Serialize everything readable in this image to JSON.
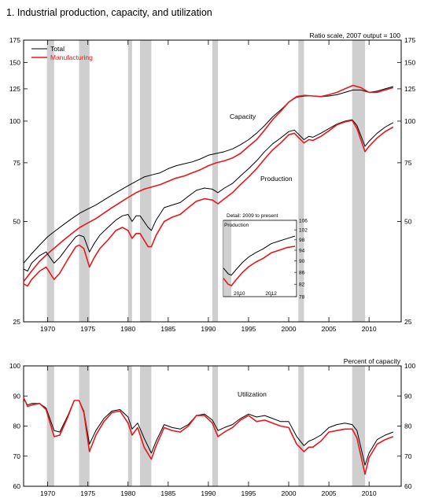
{
  "figure": {
    "title": "1.  Industrial production, capacity, and utilization"
  },
  "chart_data": [
    {
      "type": "line",
      "title": "",
      "scale_note": "Ratio scale, 2007 output = 100",
      "y_scale": "log",
      "ylim": [
        25,
        175
      ],
      "xlim": [
        1967,
        2014
      ],
      "y_ticks": [
        "175",
        "150",
        "125",
        "100",
        "75",
        "50",
        "25"
      ],
      "y_tick_values": [
        175,
        150,
        125,
        100,
        75,
        50,
        25
      ],
      "x_ticks": [
        "1970",
        "1975",
        "1980",
        "1985",
        "1990",
        "1995",
        "2000",
        "2005",
        "2010"
      ],
      "x_tick_values": [
        1970,
        1975,
        1980,
        1985,
        1990,
        1995,
        2000,
        2005,
        2010
      ],
      "legend": [
        {
          "name": "Total",
          "color": "#000000"
        },
        {
          "name": "Manufacturing",
          "color": "#e8171c"
        }
      ],
      "legend_position": "top-left",
      "annotations": [
        "Capacity",
        "Production"
      ],
      "recessions": [
        [
          1969.9,
          1970.8
        ],
        [
          1973.9,
          1975.2
        ],
        [
          1980.0,
          1980.5
        ],
        [
          1981.5,
          1982.9
        ],
        [
          1990.5,
          1991.2
        ],
        [
          2001.2,
          2001.9
        ],
        [
          2007.9,
          2009.5
        ]
      ],
      "series": [
        {
          "name": "Total",
          "group": "Capacity",
          "color": "#000000",
          "x": [
            1967,
            1968,
            1969,
            1970,
            1971,
            1972,
            1973,
            1974,
            1975,
            1976,
            1977,
            1978,
            1979,
            1980,
            1981,
            1982,
            1983,
            1984,
            1985,
            1986,
            1987,
            1988,
            1989,
            1990,
            1991,
            1992,
            1993,
            1994,
            1995,
            1996,
            1997,
            1998,
            1999,
            2000,
            2001,
            2002,
            2003,
            2004,
            2005,
            2006,
            2007,
            2008,
            2009,
            2010,
            2011,
            2012,
            2013
          ],
          "values": [
            37.5,
            40,
            42.5,
            45,
            47,
            49,
            51,
            53,
            54.5,
            56,
            58,
            60,
            62,
            64,
            66,
            68,
            69,
            70,
            72,
            73.5,
            74.5,
            75.5,
            77,
            79,
            80,
            81,
            82.5,
            85,
            88,
            92,
            97,
            103,
            108,
            114,
            118,
            119,
            119,
            118.5,
            119,
            120,
            122,
            124,
            124,
            122,
            123,
            125,
            127
          ]
        },
        {
          "name": "Manufacturing",
          "group": "Capacity",
          "color": "#e8171c",
          "x": [
            1967,
            1968,
            1969,
            1970,
            1971,
            1972,
            1973,
            1974,
            1975,
            1976,
            1977,
            1978,
            1979,
            1980,
            1981,
            1982,
            1983,
            1984,
            1985,
            1986,
            1987,
            1988,
            1989,
            1990,
            1991,
            1992,
            1993,
            1994,
            1995,
            1996,
            1997,
            1998,
            1999,
            2000,
            2001,
            2002,
            2003,
            2004,
            2005,
            2006,
            2007,
            2008,
            2009,
            2010,
            2011,
            2012,
            2013
          ],
          "values": [
            33,
            35.5,
            38,
            40,
            42,
            44,
            46,
            48,
            49.5,
            51,
            53,
            55,
            57,
            59,
            61,
            62.5,
            63.5,
            64.5,
            66,
            67.5,
            68.5,
            70,
            71.5,
            73.5,
            75,
            76,
            77.5,
            80,
            84,
            88,
            94,
            101,
            107,
            114,
            118.5,
            119.5,
            119,
            118.5,
            120,
            122,
            125,
            128,
            126,
            122,
            122,
            124,
            126
          ]
        },
        {
          "name": "Total",
          "group": "Production",
          "color": "#000000",
          "x": [
            1967,
            1967.5,
            1968,
            1969,
            1969.8,
            1970.8,
            1971.5,
            1972.5,
            1973.5,
            1973.9,
            1974.5,
            1975.2,
            1975.8,
            1976.5,
            1977.5,
            1978.5,
            1979.3,
            1980.0,
            1980.5,
            1981.0,
            1981.5,
            1982.5,
            1982.9,
            1983.5,
            1984.5,
            1985.5,
            1986.5,
            1987.5,
            1988.5,
            1989.5,
            1990.5,
            1991.2,
            1992,
            1993,
            1994,
            1995,
            1996,
            1997,
            1998,
            1999,
            2000,
            2000.7,
            2001.9,
            2002.5,
            2003,
            2004,
            2005,
            2006,
            2007,
            2007.9,
            2008.5,
            2009.5,
            2010,
            2011,
            2012,
            2013
          ],
          "values": [
            36,
            35.5,
            37.5,
            39.5,
            40.5,
            37.5,
            39,
            42,
            45,
            45.5,
            45,
            40.5,
            43,
            45.5,
            48,
            50.5,
            52,
            52.5,
            50,
            52,
            52,
            48,
            47,
            50.5,
            55,
            56,
            57,
            59.5,
            62,
            63,
            62.5,
            61,
            63,
            65,
            68.5,
            72,
            76,
            81,
            85.5,
            89,
            93,
            94,
            88,
            90,
            89.5,
            92,
            95,
            98,
            100,
            101,
            97,
            84,
            87,
            92,
            96,
            99
          ]
        },
        {
          "name": "Manufacturing",
          "group": "Production",
          "color": "#e8171c",
          "x": [
            1967,
            1967.5,
            1968,
            1969,
            1969.8,
            1970.8,
            1971.5,
            1972.5,
            1973.5,
            1973.9,
            1974.5,
            1975.2,
            1975.8,
            1976.5,
            1977.5,
            1978.5,
            1979.3,
            1980.0,
            1980.5,
            1981.0,
            1981.5,
            1982.5,
            1982.9,
            1983.5,
            1984.5,
            1985.5,
            1986.5,
            1987.5,
            1988.5,
            1989.5,
            1990.5,
            1991.2,
            1992,
            1993,
            1994,
            1995,
            1996,
            1997,
            1998,
            1999,
            2000,
            2000.7,
            2001.9,
            2002.5,
            2003,
            2004,
            2005,
            2006,
            2007,
            2007.9,
            2008.5,
            2009.5,
            2010,
            2011,
            2012,
            2013
          ],
          "values": [
            32.5,
            32,
            33.5,
            35.5,
            36.5,
            33.5,
            35,
            38.5,
            42,
            42.5,
            41.5,
            36.5,
            39,
            41.5,
            44,
            47,
            48,
            47,
            44.5,
            46,
            46,
            42,
            42,
            45.5,
            50,
            51.5,
            52.5,
            55,
            57.5,
            58.5,
            58,
            56.5,
            58.5,
            61,
            64.5,
            68,
            72,
            77,
            82,
            86,
            91,
            92,
            86,
            88,
            87.5,
            90,
            93.5,
            97.5,
            99.5,
            100.5,
            95,
            81,
            84,
            89,
            93,
            96
          ]
        }
      ]
    },
    {
      "type": "line",
      "title": "Detail: 2009 to present",
      "label": "Production",
      "y_scale": "log",
      "ylim": [
        78,
        106
      ],
      "xlim": [
        2009,
        2013.6
      ],
      "y_ticks": [
        "106",
        "102",
        "98",
        "94",
        "90",
        "86",
        "82",
        "78"
      ],
      "y_tick_values": [
        106,
        102,
        98,
        94,
        90,
        86,
        82,
        78
      ],
      "x_ticks": [
        "2010",
        "2012"
      ],
      "x_tick_values": [
        2010,
        2012
      ],
      "recessions": [
        [
          2009,
          2009.5
        ]
      ],
      "series": [
        {
          "name": "Total",
          "color": "#000000",
          "x": [
            2009,
            2009.3,
            2009.5,
            2009.8,
            2010.2,
            2010.6,
            2011.0,
            2011.5,
            2012.0,
            2012.5,
            2013.0,
            2013.5
          ],
          "values": [
            87.5,
            85.5,
            85,
            87,
            89.5,
            91.5,
            93,
            94.5,
            96.5,
            97.5,
            98.5,
            99.5
          ]
        },
        {
          "name": "Manufacturing",
          "color": "#e8171c",
          "x": [
            2009,
            2009.3,
            2009.5,
            2009.8,
            2010.2,
            2010.6,
            2011.0,
            2011.5,
            2012.0,
            2012.5,
            2013.0,
            2013.5
          ],
          "values": [
            84,
            82,
            81.5,
            83.5,
            86,
            88,
            89.5,
            91,
            93,
            94,
            95,
            95.5
          ]
        }
      ]
    },
    {
      "type": "line",
      "title": "",
      "scale_note": "Percent of capacity",
      "annotation": "Utilization",
      "ylim": [
        60,
        100
      ],
      "xlim": [
        1967,
        2014
      ],
      "y_ticks": [
        "100",
        "90",
        "80",
        "70",
        "60"
      ],
      "y_tick_values": [
        100,
        90,
        80,
        70,
        60
      ],
      "x_ticks": [
        "1970",
        "1975",
        "1980",
        "1985",
        "1990",
        "1995",
        "2000",
        "2005",
        "2010"
      ],
      "x_tick_values": [
        1970,
        1975,
        1980,
        1985,
        1990,
        1995,
        2000,
        2005,
        2010
      ],
      "recessions": [
        [
          1969.9,
          1970.8
        ],
        [
          1973.9,
          1975.2
        ],
        [
          1980.0,
          1980.5
        ],
        [
          1981.5,
          1982.9
        ],
        [
          1990.5,
          1991.2
        ],
        [
          2001.2,
          2001.9
        ],
        [
          2007.9,
          2009.5
        ]
      ],
      "series": [
        {
          "name": "Total",
          "color": "#000000",
          "x": [
            1967,
            1967.5,
            1968,
            1969,
            1969.8,
            1970.8,
            1971.5,
            1972.5,
            1973.3,
            1973.9,
            1974.5,
            1975.2,
            1976,
            1977,
            1978,
            1979,
            1980,
            1980.5,
            1981.2,
            1982.0,
            1982.9,
            1983.5,
            1984.5,
            1985.5,
            1986.5,
            1987.5,
            1988.5,
            1989.5,
            1990.5,
            1991.2,
            1992,
            1993,
            1994,
            1995,
            1996,
            1997,
            1998,
            1999,
            2000,
            2001,
            2001.9,
            2002.5,
            2003,
            2004,
            2005,
            2006,
            2007,
            2007.9,
            2008.5,
            2009.5,
            2010,
            2011,
            2012,
            2013
          ],
          "values": [
            89,
            87,
            87.5,
            87.5,
            86,
            78.5,
            78,
            83.5,
            88.5,
            88.5,
            85,
            74,
            78.5,
            82.5,
            85,
            85.5,
            83,
            79,
            81,
            76,
            71,
            75,
            80.5,
            79.5,
            79,
            80.5,
            83.5,
            84,
            82,
            78.5,
            79.5,
            80.5,
            82.5,
            84,
            83,
            83.5,
            82.5,
            81.5,
            81.5,
            76.5,
            73.5,
            75,
            75.5,
            77,
            79.5,
            80.5,
            81,
            80.5,
            78.5,
            67,
            71,
            75.5,
            77,
            78
          ]
        },
        {
          "name": "Manufacturing",
          "color": "#e8171c",
          "x": [
            1967,
            1967.5,
            1968,
            1969,
            1969.8,
            1970.8,
            1971.5,
            1972.5,
            1973.3,
            1973.9,
            1974.5,
            1975.2,
            1976,
            1977,
            1978,
            1979,
            1980,
            1980.5,
            1981.2,
            1982.0,
            1982.9,
            1983.5,
            1984.5,
            1985.5,
            1986.5,
            1987.5,
            1988.5,
            1989.5,
            1990.5,
            1991.2,
            1992,
            1993,
            1994,
            1995,
            1996,
            1997,
            1998,
            1999,
            2000,
            2001,
            2001.9,
            2002.5,
            2003,
            2004,
            2005,
            2006,
            2007,
            2007.9,
            2008.5,
            2009.5,
            2010,
            2011,
            2012,
            2013
          ],
          "values": [
            89.5,
            86.5,
            87,
            87.5,
            85.5,
            76.5,
            77,
            83,
            88.5,
            88.5,
            84.5,
            71.5,
            77,
            81.5,
            84.5,
            85,
            81,
            77,
            79.5,
            73,
            69,
            73.5,
            79.5,
            78.5,
            78,
            80,
            83.5,
            83.5,
            81,
            76.5,
            78,
            79.5,
            82,
            83.5,
            81.5,
            82,
            81,
            80,
            79.5,
            74,
            71.5,
            73,
            73,
            75,
            78,
            78.5,
            79,
            79,
            76,
            64,
            69.5,
            74,
            75.5,
            76.5
          ]
        }
      ]
    }
  ]
}
